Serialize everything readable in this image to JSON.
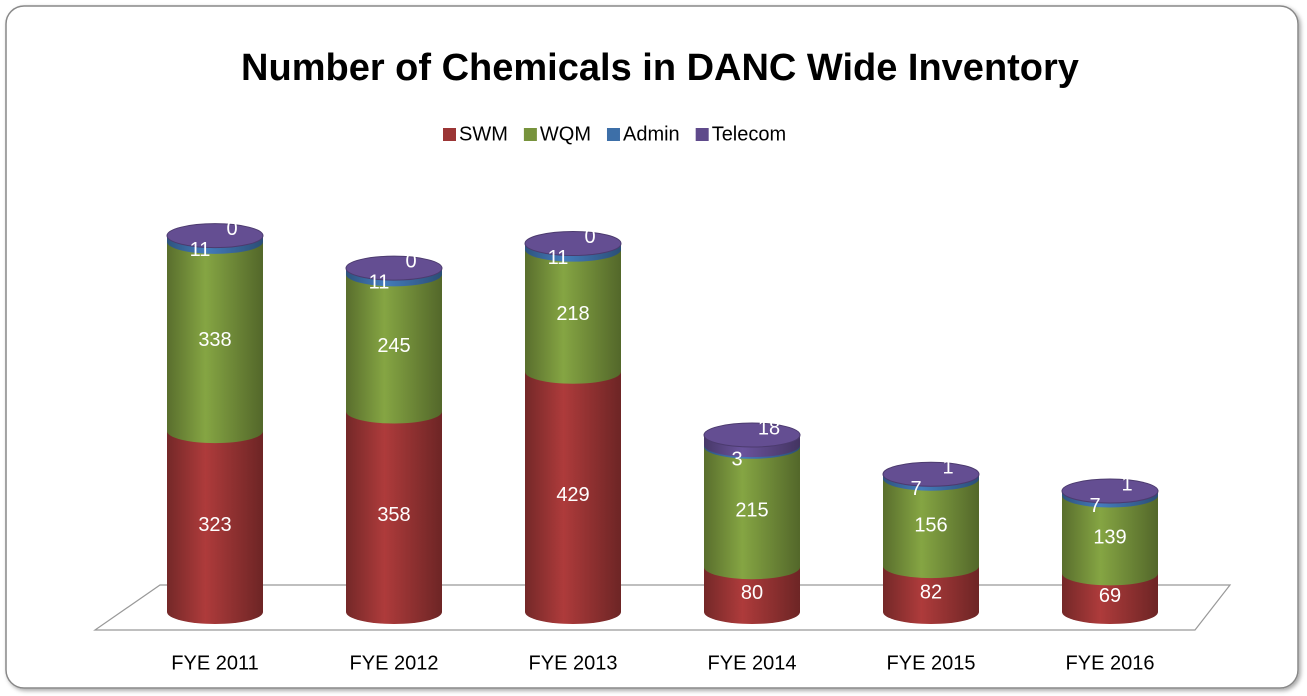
{
  "chart_data": {
    "type": "bar3d-stacked",
    "title": "Number of Chemicals in DANC Wide Inventory",
    "categories": [
      "FYE 2011",
      "FYE 2012",
      "FYE 2013",
      "FYE 2014",
      "FYE 2015",
      "FYE 2016"
    ],
    "series": [
      {
        "name": "SWM",
        "color": "#9b3535",
        "values": [
          323,
          358,
          429,
          80,
          82,
          69
        ]
      },
      {
        "name": "WQM",
        "color": "#77933c",
        "values": [
          338,
          245,
          218,
          215,
          156,
          139
        ]
      },
      {
        "name": "Admin",
        "color": "#3d6fa8",
        "values": [
          11,
          11,
          11,
          3,
          7,
          7
        ]
      },
      {
        "name": "Telecom",
        "color": "#5f4a8b",
        "values": [
          0,
          0,
          0,
          18,
          1,
          1
        ]
      }
    ]
  }
}
